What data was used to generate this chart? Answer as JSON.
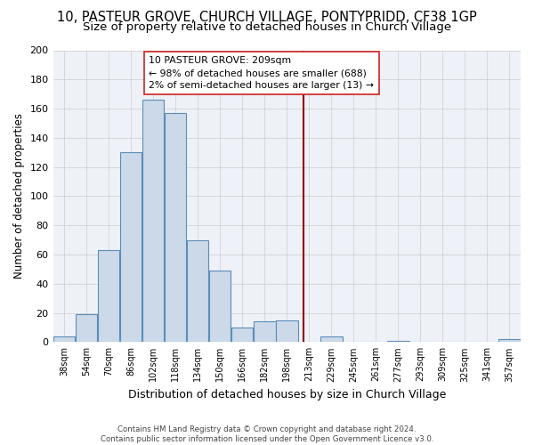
{
  "title": "10, PASTEUR GROVE, CHURCH VILLAGE, PONTYPRIDD, CF38 1GP",
  "subtitle": "Size of property relative to detached houses in Church Village",
  "xlabel": "Distribution of detached houses by size in Church Village",
  "ylabel": "Number of detached properties",
  "bar_color": "#ccd9e8",
  "bar_edge_color": "#5b8db8",
  "bin_labels": [
    "38sqm",
    "54sqm",
    "70sqm",
    "86sqm",
    "102sqm",
    "118sqm",
    "134sqm",
    "150sqm",
    "166sqm",
    "182sqm",
    "198sqm",
    "213sqm",
    "229sqm",
    "245sqm",
    "261sqm",
    "277sqm",
    "293sqm",
    "309sqm",
    "325sqm",
    "341sqm",
    "357sqm"
  ],
  "bar_heights": [
    4,
    19,
    63,
    130,
    166,
    157,
    70,
    49,
    10,
    14,
    15,
    0,
    4,
    0,
    0,
    1,
    0,
    0,
    0,
    0,
    2
  ],
  "ylim": [
    0,
    200
  ],
  "yticks": [
    0,
    20,
    40,
    60,
    80,
    100,
    120,
    140,
    160,
    180,
    200
  ],
  "vline_color": "#8b0000",
  "annotation_line1": "10 PASTEUR GROVE: 209sqm",
  "annotation_line2": "← 98% of detached houses are smaller (688)",
  "annotation_line3": "2% of semi-detached houses are larger (13) →",
  "footnote_full": "Contains HM Land Registry data © Crown copyright and database right 2024.\nContains public sector information licensed under the Open Government Licence v3.0.",
  "background_color": "#eef2f8",
  "grid_color": "#cccccc",
  "title_fontsize": 10.5,
  "subtitle_fontsize": 9.5,
  "ylabel_fontsize": 8.5,
  "xlabel_fontsize": 9
}
